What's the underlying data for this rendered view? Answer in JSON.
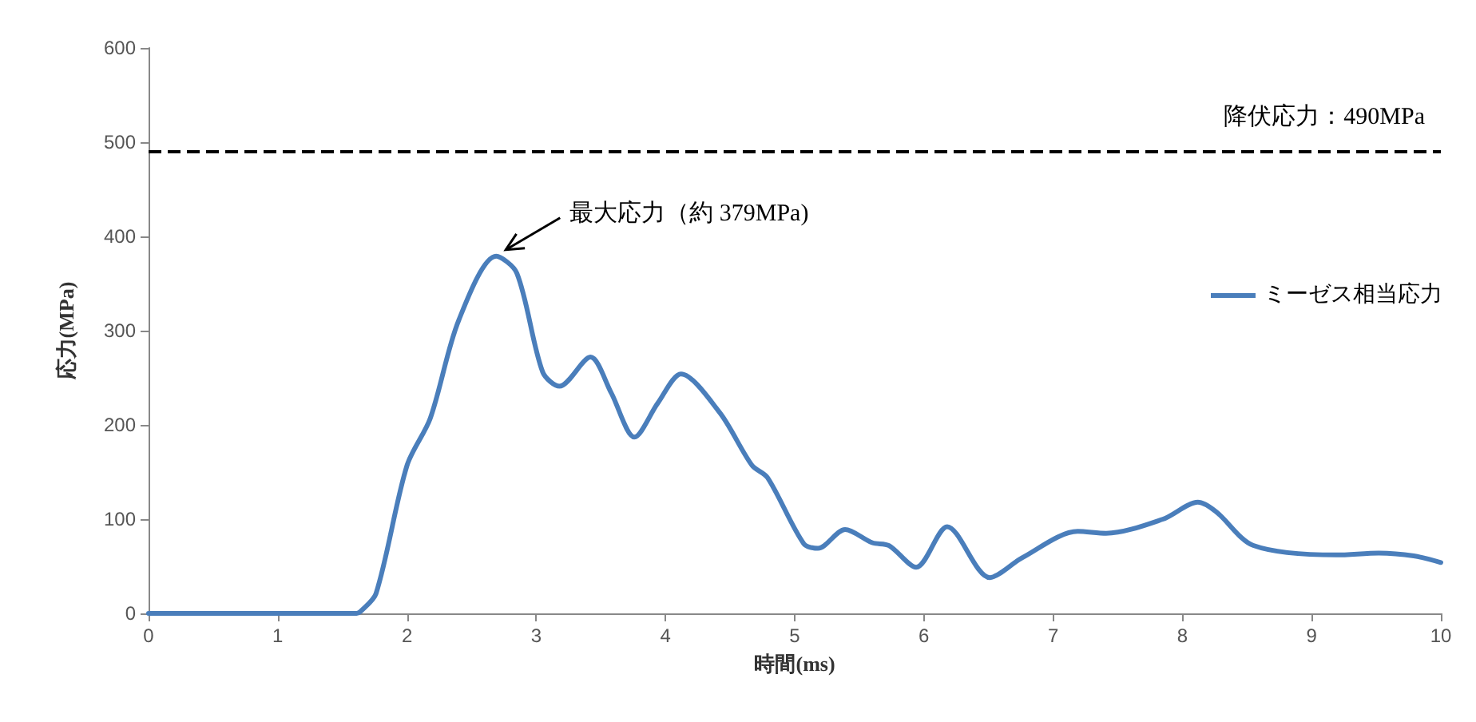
{
  "chart_data": {
    "type": "line",
    "xlabel": "時間(ms)",
    "ylabel": "応力(MPa)",
    "xlim": [
      0,
      10
    ],
    "xticks": [
      0,
      1,
      2,
      3,
      4,
      5,
      6,
      7,
      8,
      9,
      10
    ],
    "ylim": [
      0,
      600
    ],
    "yticks": [
      0,
      100,
      200,
      300,
      400,
      500,
      600
    ],
    "grid": false,
    "legend": "right",
    "marker": "none",
    "line_style": "solid",
    "series": [
      {
        "name": "ミーゼス相当応力",
        "color": "#4a7ebb",
        "x": [
          0,
          1.0,
          1.61,
          1.64,
          1.76,
          2.0,
          2.18,
          2.4,
          2.69,
          2.85,
          3.05,
          3.18,
          3.42,
          3.58,
          3.76,
          3.94,
          4.12,
          4.42,
          4.67,
          4.79,
          5.07,
          5.18,
          5.39,
          5.6,
          5.73,
          5.94,
          6.18,
          6.51,
          6.76,
          7.19,
          7.41,
          7.85,
          8.12,
          8.26,
          8.55,
          9.19,
          9.52,
          9.79,
          10
        ],
        "values": [
          0,
          0,
          0,
          2,
          21,
          157,
          207,
          311,
          379,
          361,
          256,
          241,
          272,
          234,
          187,
          223,
          254,
          213,
          157,
          144,
          74,
          69,
          89,
          75,
          72,
          49,
          92,
          38,
          59,
          87,
          85,
          100,
          118,
          108,
          72,
          62,
          64,
          61,
          54
        ]
      }
    ],
    "ref_lines": [
      {
        "axis": "y",
        "value": 490,
        "label": "降伏応力：490MPa",
        "color": "#000000",
        "line_style": "dashed"
      }
    ],
    "annotations": [
      {
        "text": "最大応力（約 379MPa)",
        "x": 2.69,
        "y": 379
      }
    ]
  }
}
